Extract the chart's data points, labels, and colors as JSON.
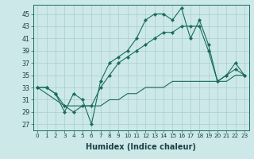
{
  "xlabel": "Humidex (Indice chaleur)",
  "background_color": "#cce8e8",
  "line_color": "#1a6b5e",
  "grid_color": "#aacece",
  "xlim": [
    -0.5,
    23.5
  ],
  "ylim": [
    26,
    46.5
  ],
  "yticks": [
    27,
    29,
    31,
    33,
    35,
    37,
    39,
    41,
    43,
    45
  ],
  "xticks": [
    0,
    1,
    2,
    3,
    4,
    5,
    6,
    7,
    8,
    9,
    10,
    11,
    12,
    13,
    14,
    15,
    16,
    17,
    18,
    19,
    20,
    21,
    22,
    23
  ],
  "line1_x": [
    0,
    1,
    2,
    3,
    4,
    5,
    6,
    7,
    8,
    9,
    10,
    11,
    12,
    13,
    14,
    15,
    16,
    17,
    18,
    19,
    20,
    21,
    22,
    23
  ],
  "line1_y": [
    33,
    33,
    32,
    29,
    32,
    31,
    27,
    34,
    37,
    38,
    39,
    41,
    44,
    45,
    45,
    44,
    46,
    41,
    44,
    40,
    34,
    35,
    37,
    35
  ],
  "line2_x": [
    0,
    1,
    2,
    3,
    4,
    5,
    6,
    7,
    8,
    9,
    10,
    11,
    12,
    13,
    14,
    15,
    16,
    17,
    18,
    19,
    20,
    21,
    22,
    23
  ],
  "line2_y": [
    33,
    33,
    32,
    30,
    29,
    30,
    30,
    33,
    35,
    37,
    38,
    39,
    40,
    41,
    42,
    42,
    43,
    43,
    43,
    39,
    34,
    35,
    36,
    35
  ],
  "line3_x": [
    0,
    1,
    2,
    3,
    4,
    5,
    6,
    7,
    8,
    9,
    10,
    11,
    12,
    13,
    14,
    15,
    16,
    17,
    18,
    19,
    20,
    21,
    22,
    23
  ],
  "line3_y": [
    33,
    32,
    31,
    30,
    30,
    30,
    30,
    30,
    31,
    31,
    32,
    32,
    33,
    33,
    33,
    34,
    34,
    34,
    34,
    34,
    34,
    34,
    35,
    35
  ],
  "xtick_fontsize": 5.2,
  "ytick_fontsize": 5.8,
  "xlabel_fontsize": 7.0
}
